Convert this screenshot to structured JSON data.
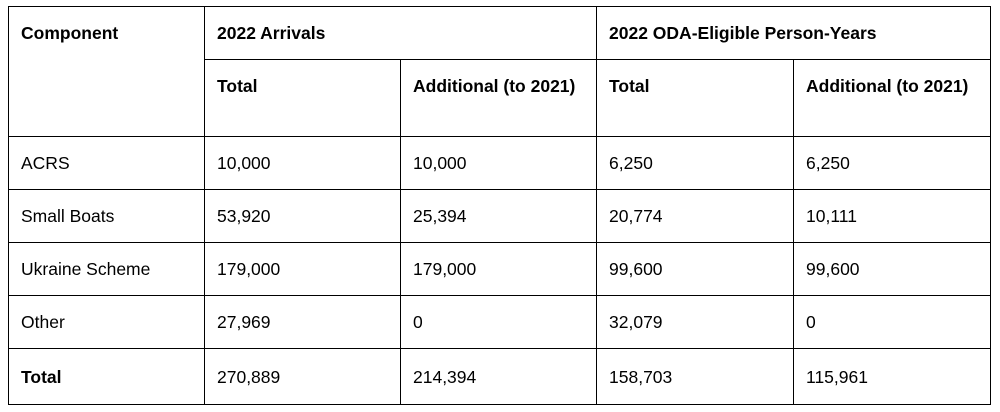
{
  "table": {
    "headers": {
      "component": "Component",
      "group_arrivals": "2022 Arrivals",
      "group_oda": "2022 ODA-Eligible Person-Years",
      "sub_total_1": "Total",
      "sub_additional_1": "Additional (to 2021)",
      "sub_total_2": "Total",
      "sub_additional_2": "Additional (to 2021)"
    },
    "rows": [
      {
        "component": "ACRS",
        "arr_total": "10,000",
        "arr_add": "10,000",
        "oda_total": "6,250",
        "oda_add": "6,250"
      },
      {
        "component": "Small Boats",
        "arr_total": "53,920",
        "arr_add": "25,394",
        "oda_total": "20,774",
        "oda_add": "10,111"
      },
      {
        "component": "Ukraine Scheme",
        "arr_total": "179,000",
        "arr_add": "179,000",
        "oda_total": "99,600",
        "oda_add": "99,600"
      },
      {
        "component": "Other",
        "arr_total": "27,969",
        "arr_add": "0",
        "oda_total": "32,079",
        "oda_add": "0"
      }
    ],
    "total_row": {
      "component": "Total",
      "arr_total": "270,889",
      "arr_add": "214,394",
      "oda_total": "158,703",
      "oda_add": "115,961"
    }
  }
}
